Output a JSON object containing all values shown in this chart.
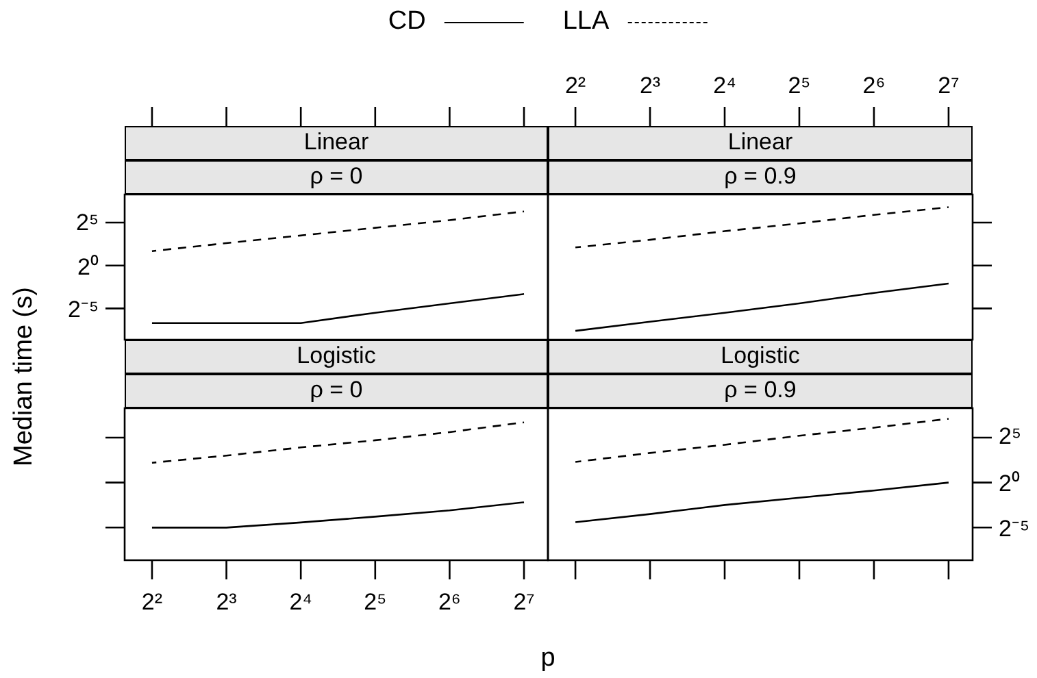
{
  "chart_data": [
    {
      "type": "line",
      "title": "Linear",
      "subtitle": "ρ = 0",
      "xlabel": "p",
      "ylabel": "Median time (s)",
      "legend": "top",
      "log": "xy",
      "tick_labels": "y",
      "x": [
        4,
        8,
        16,
        32,
        64,
        128
      ],
      "xlim": [
        3.1,
        160
      ],
      "ylim": [
        0.0025,
        310
      ],
      "xticks": [
        {
          "value": 4,
          "label": null
        },
        {
          "value": 8,
          "label": null
        },
        {
          "value": 16,
          "label": null
        },
        {
          "value": 32,
          "label": null
        },
        {
          "value": 64,
          "label": null
        },
        {
          "value": 128,
          "label": null
        }
      ],
      "yticks": [
        {
          "value": 0.03125,
          "label": "2⁻⁵"
        },
        {
          "value": 1,
          "label": "2⁰"
        },
        {
          "value": 32,
          "label": "2⁵"
        }
      ],
      "series": [
        {
          "name": "CD",
          "color": "#000000",
          "line_style": "solid",
          "values": [
            0.0096,
            0.0096,
            0.0096,
            0.022,
            0.047,
            0.1
          ]
        },
        {
          "name": "LLA",
          "color": "#000000",
          "line_style": "dashed",
          "values": [
            3.2,
            6.1,
            11.3,
            21,
            39,
            79
          ]
        }
      ]
    },
    {
      "type": "line",
      "title": "Linear",
      "subtitle": "ρ = 0.9",
      "log": "xy",
      "tick_labels": "x",
      "x": [
        4,
        8,
        16,
        32,
        64,
        128
      ],
      "xlim": [
        3.1,
        160
      ],
      "ylim": [
        0.0025,
        310
      ],
      "xticks": [
        {
          "value": 4,
          "label": "2²"
        },
        {
          "value": 8,
          "label": "2³"
        },
        {
          "value": 16,
          "label": "2⁴"
        },
        {
          "value": 32,
          "label": "2⁵"
        },
        {
          "value": 64,
          "label": "2⁶"
        },
        {
          "value": 128,
          "label": "2⁷"
        }
      ],
      "yticks": [
        {
          "value": 0.03125,
          "label": null
        },
        {
          "value": 1,
          "label": null
        },
        {
          "value": 32,
          "label": null
        }
      ],
      "series": [
        {
          "color": "#000000",
          "line_style": "solid",
          "values": [
            0.0051,
            0.0107,
            0.022,
            0.047,
            0.109,
            0.233
          ]
        },
        {
          "color": "#000000",
          "line_style": "dashed",
          "values": [
            4.3,
            8,
            16,
            30,
            60,
            111
          ]
        }
      ]
    },
    {
      "type": "line",
      "title": "Logistic",
      "subtitle": "ρ = 0",
      "log": "xy",
      "tick_labels": "x",
      "x": [
        4,
        8,
        16,
        32,
        64,
        128
      ],
      "xlim": [
        3.1,
        160
      ],
      "ylim": [
        0.0025,
        310
      ],
      "xticks": [
        {
          "value": 4,
          "label": "2²"
        },
        {
          "value": 8,
          "label": "2³"
        },
        {
          "value": 16,
          "label": "2⁴"
        },
        {
          "value": 32,
          "label": "2⁵"
        },
        {
          "value": 64,
          "label": "2⁶"
        },
        {
          "value": 128,
          "label": "2⁷"
        }
      ],
      "yticks": [
        {
          "value": 0.03125,
          "label": null
        },
        {
          "value": 1,
          "label": null
        },
        {
          "value": 32,
          "label": null
        }
      ],
      "series": [
        {
          "color": "#000000",
          "line_style": "solid",
          "values": [
            0.031,
            0.031,
            0.046,
            0.072,
            0.117,
            0.218
          ]
        },
        {
          "color": "#000000",
          "line_style": "dashed",
          "values": [
            4.6,
            8,
            15,
            26,
            49,
            104
          ]
        }
      ]
    },
    {
      "type": "line",
      "title": "Logistic",
      "subtitle": "ρ = 0.9",
      "log": "xy",
      "tick_labels": "y",
      "x": [
        4,
        8,
        16,
        32,
        64,
        128
      ],
      "xlim": [
        3.1,
        160
      ],
      "ylim": [
        0.0025,
        310
      ],
      "xticks": [
        {
          "value": 4,
          "label": null
        },
        {
          "value": 8,
          "label": null
        },
        {
          "value": 16,
          "label": null
        },
        {
          "value": 32,
          "label": null
        },
        {
          "value": 64,
          "label": null
        },
        {
          "value": 128,
          "label": null
        }
      ],
      "yticks": [
        {
          "value": 0.03125,
          "label": "2⁻⁵"
        },
        {
          "value": 1,
          "label": "2⁰"
        },
        {
          "value": 32,
          "label": "2⁵"
        }
      ],
      "series": [
        {
          "color": "#000000",
          "line_style": "solid",
          "values": [
            0.047,
            0.088,
            0.177,
            0.31,
            0.54,
            1.0
          ]
        },
        {
          "color": "#000000",
          "line_style": "dashed",
          "values": [
            4.9,
            9.8,
            18.4,
            37,
            69,
            137
          ]
        }
      ]
    }
  ]
}
